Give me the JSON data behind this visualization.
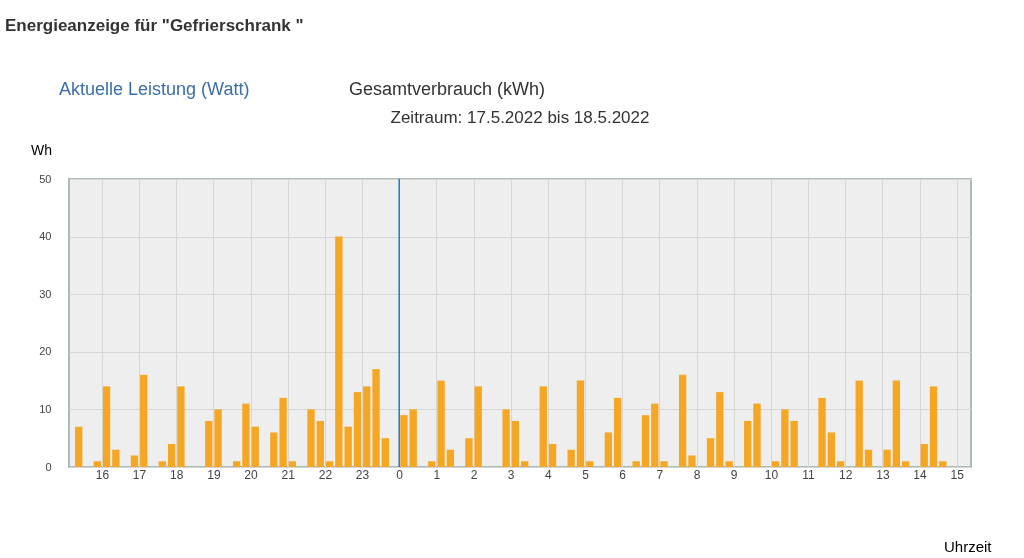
{
  "chart_data": {
    "type": "bar",
    "title": "Energieanzeige für \"Gefrierschrank \"",
    "subtitle": "Zeitraum: 17.5.2022 bis 18.5.2022",
    "annotations": [
      "Aktuelle Leistung (Watt)",
      "Gesamtverbrauch (kWh)"
    ],
    "xlabel": "Uhrzeit",
    "ylabel": "Wh",
    "x": [
      "2022-05-17T15:15",
      "2022-05-17T15:45",
      "2022-05-17T16:00",
      "2022-05-17T16:15",
      "2022-05-17T16:45",
      "2022-05-17T17:00",
      "2022-05-17T17:30",
      "2022-05-17T17:45",
      "2022-05-17T18:00",
      "2022-05-17T18:45",
      "2022-05-17T19:00",
      "2022-05-17T19:30",
      "2022-05-17T19:45",
      "2022-05-17T20:00",
      "2022-05-17T20:30",
      "2022-05-17T20:45",
      "2022-05-17T21:00",
      "2022-05-17T21:30",
      "2022-05-17T21:45",
      "2022-05-17T22:00",
      "2022-05-17T22:15",
      "2022-05-17T22:30",
      "2022-05-17T22:45",
      "2022-05-17T23:00",
      "2022-05-17T23:15",
      "2022-05-17T23:30",
      "2022-05-18T00:00",
      "2022-05-18T00:15",
      "2022-05-18T00:45",
      "2022-05-18T01:00",
      "2022-05-18T01:15",
      "2022-05-18T01:45",
      "2022-05-18T02:00",
      "2022-05-18T02:45",
      "2022-05-18T03:00",
      "2022-05-18T03:15",
      "2022-05-18T03:45",
      "2022-05-18T04:00",
      "2022-05-18T04:30",
      "2022-05-18T04:45",
      "2022-05-18T05:00",
      "2022-05-18T05:30",
      "2022-05-18T05:45",
      "2022-05-18T06:15",
      "2022-05-18T06:30",
      "2022-05-18T06:45",
      "2022-05-18T07:00",
      "2022-05-18T07:30",
      "2022-05-18T07:45",
      "2022-05-18T08:15",
      "2022-05-18T08:30",
      "2022-05-18T08:45",
      "2022-05-18T09:15",
      "2022-05-18T09:30",
      "2022-05-18T10:00",
      "2022-05-18T10:15",
      "2022-05-18T10:30",
      "2022-05-18T11:15",
      "2022-05-18T11:30",
      "2022-05-18T11:45",
      "2022-05-18T12:15",
      "2022-05-18T12:30",
      "2022-05-18T13:00",
      "2022-05-18T13:15",
      "2022-05-18T13:30",
      "2022-05-18T14:00",
      "2022-05-18T14:15",
      "2022-05-18T14:30"
    ],
    "values": [
      7,
      1,
      14,
      3,
      2,
      16,
      1,
      4,
      14,
      8,
      10,
      1,
      11,
      7,
      6,
      12,
      1,
      10,
      8,
      1,
      40,
      7,
      13,
      14,
      17,
      5,
      9,
      10,
      1,
      15,
      3,
      5,
      14,
      10,
      8,
      1,
      14,
      4,
      3,
      15,
      1,
      6,
      12,
      1,
      9,
      11,
      1,
      16,
      2,
      5,
      13,
      1,
      8,
      11,
      1,
      10,
      8,
      12,
      6,
      1,
      15,
      3,
      3,
      15,
      1,
      4,
      14,
      1
    ],
    "color": "#f5a623",
    "xlim": [
      "2022-05-17T15:15",
      "2022-05-18T15:15"
    ],
    "xticks": [
      {
        "value": "2022-05-17T16:00",
        "label": "16"
      },
      {
        "value": "2022-05-17T17:00",
        "label": "17"
      },
      {
        "value": "2022-05-17T18:00",
        "label": "18"
      },
      {
        "value": "2022-05-17T19:00",
        "label": "19"
      },
      {
        "value": "2022-05-17T20:00",
        "label": "20"
      },
      {
        "value": "2022-05-17T21:00",
        "label": "21"
      },
      {
        "value": "2022-05-17T22:00",
        "label": "22"
      },
      {
        "value": "2022-05-17T23:00",
        "label": "23"
      },
      {
        "value": "2022-05-18T00:00",
        "label": "0"
      },
      {
        "value": "2022-05-18T01:00",
        "label": "1"
      },
      {
        "value": "2022-05-18T02:00",
        "label": "2"
      },
      {
        "value": "2022-05-18T03:00",
        "label": "3"
      },
      {
        "value": "2022-05-18T04:00",
        "label": "4"
      },
      {
        "value": "2022-05-18T05:00",
        "label": "5"
      },
      {
        "value": "2022-05-18T06:00",
        "label": "6"
      },
      {
        "value": "2022-05-18T07:00",
        "label": "7"
      },
      {
        "value": "2022-05-18T08:00",
        "label": "8"
      },
      {
        "value": "2022-05-18T09:00",
        "label": "9"
      },
      {
        "value": "2022-05-18T10:00",
        "label": "10"
      },
      {
        "value": "2022-05-18T11:00",
        "label": "11"
      },
      {
        "value": "2022-05-18T12:00",
        "label": "12"
      },
      {
        "value": "2022-05-18T13:00",
        "label": "13"
      },
      {
        "value": "2022-05-18T14:00",
        "label": "14"
      },
      {
        "value": "2022-05-18T15:00",
        "label": "15"
      }
    ],
    "ylim": [
      0,
      50
    ],
    "yticks": [
      0,
      10,
      20,
      30,
      40,
      50
    ],
    "grid": true,
    "ref_lines": [
      {
        "axis": "x",
        "value": "2022-05-18T00:00",
        "color": "#1f78d1"
      }
    ]
  }
}
